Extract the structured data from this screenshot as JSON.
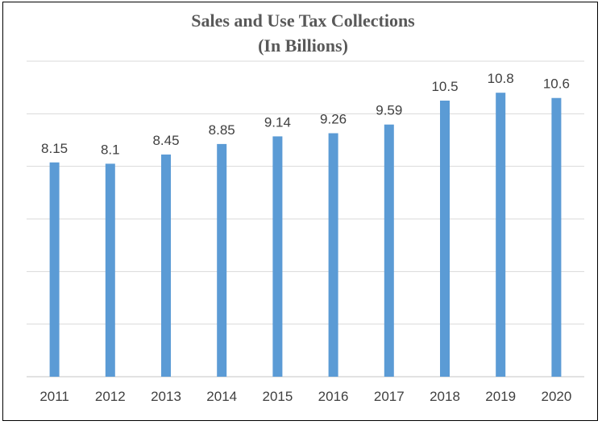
{
  "chart_data": {
    "type": "bar",
    "title": "Sales and Use Tax Collections",
    "subtitle": "(In Billions)",
    "xlabel": "",
    "ylabel": "",
    "categories": [
      "2011",
      "2012",
      "2013",
      "2014",
      "2015",
      "2016",
      "2017",
      "2018",
      "2019",
      "2020"
    ],
    "values": [
      8.15,
      8.1,
      8.45,
      8.85,
      9.14,
      9.26,
      9.59,
      10.5,
      10.8,
      10.6
    ],
    "data_labels": [
      "8.15",
      "8.1",
      "8.45",
      "8.85",
      "9.14",
      "9.26",
      "9.59",
      "10.5",
      "10.8",
      "10.6"
    ],
    "ylim": [
      0,
      12
    ],
    "y_gridline_step": 2,
    "grid": true,
    "legend": "none",
    "bar_color": "#5B9BD5",
    "grid_color": "#D9D9D9"
  }
}
